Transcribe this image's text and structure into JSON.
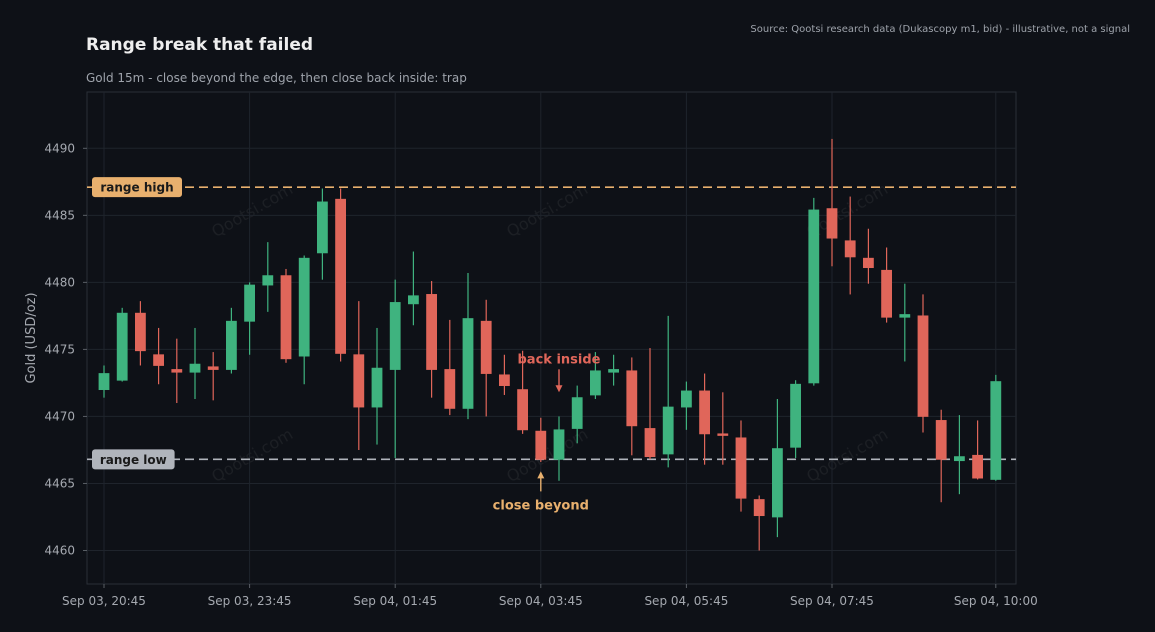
{
  "header": {
    "title": "Range break that failed",
    "subtitle": "Gold 15m - close beyond the edge, then close back inside: trap",
    "source": "Source: Qootsi research data (Dukascopy m1, bid) - illustrative, not a signal"
  },
  "watermark": "Qootsi.com",
  "colors": {
    "bg": "#0e1117",
    "up": "#3fb37f",
    "down": "#e0665a",
    "range_high": "#e8b06e",
    "range_low": "#b0b4bb",
    "grid": "#1f242c"
  },
  "chart_data": {
    "type": "candlestick",
    "xlabel": "",
    "ylabel": "Gold (USD/oz)",
    "ylim": [
      4457.5,
      4494.2
    ],
    "yticks": [
      4460,
      4465,
      4470,
      4475,
      4480,
      4485,
      4490
    ],
    "xticks": [
      {
        "index": 0,
        "label": "Sep 03, 20:45"
      },
      {
        "index": 8,
        "label": "Sep 03, 23:45"
      },
      {
        "index": 16,
        "label": "Sep 04, 01:45"
      },
      {
        "index": 24,
        "label": "Sep 04, 03:45"
      },
      {
        "index": 32,
        "label": "Sep 04, 05:45"
      },
      {
        "index": 40,
        "label": "Sep 04, 07:45"
      },
      {
        "index": 49,
        "label": "Sep 04, 10:00"
      }
    ],
    "grid": true,
    "levels": [
      {
        "name": "range high",
        "value": 4487.1
      },
      {
        "name": "range low",
        "value": 4466.8
      }
    ],
    "candles": [
      {
        "open": 4472.0,
        "high": 4473.8,
        "low": 4471.4,
        "close": 4473.2
      },
      {
        "open": 4472.7,
        "high": 4478.1,
        "low": 4472.6,
        "close": 4477.7
      },
      {
        "open": 4477.7,
        "high": 4478.6,
        "low": 4473.8,
        "close": 4474.9
      },
      {
        "open": 4474.6,
        "high": 4476.6,
        "low": 4472.4,
        "close": 4473.8
      },
      {
        "open": 4473.5,
        "high": 4475.8,
        "low": 4471.0,
        "close": 4473.3
      },
      {
        "open": 4473.3,
        "high": 4476.6,
        "low": 4471.3,
        "close": 4473.9
      },
      {
        "open": 4473.7,
        "high": 4474.8,
        "low": 4471.2,
        "close": 4473.5
      },
      {
        "open": 4473.5,
        "high": 4478.1,
        "low": 4473.2,
        "close": 4477.1
      },
      {
        "open": 4477.1,
        "high": 4480.0,
        "low": 4474.6,
        "close": 4479.8
      },
      {
        "open": 4479.8,
        "high": 4483.0,
        "low": 4477.8,
        "close": 4480.5
      },
      {
        "open": 4480.5,
        "high": 4481.0,
        "low": 4474.0,
        "close": 4474.3
      },
      {
        "open": 4474.5,
        "high": 4482.0,
        "low": 4472.4,
        "close": 4481.8
      },
      {
        "open": 4482.2,
        "high": 4487.0,
        "low": 4480.2,
        "close": 4486.0
      },
      {
        "open": 4486.2,
        "high": 4487.0,
        "low": 4474.1,
        "close": 4474.7
      },
      {
        "open": 4474.6,
        "high": 4478.6,
        "low": 4467.5,
        "close": 4470.7
      },
      {
        "open": 4470.7,
        "high": 4476.6,
        "low": 4467.9,
        "close": 4473.6
      },
      {
        "open": 4473.5,
        "high": 4480.2,
        "low": 4466.9,
        "close": 4478.5
      },
      {
        "open": 4478.4,
        "high": 4482.3,
        "low": 4476.8,
        "close": 4479.0
      },
      {
        "open": 4479.1,
        "high": 4480.1,
        "low": 4471.4,
        "close": 4473.5
      },
      {
        "open": 4473.5,
        "high": 4477.2,
        "low": 4470.1,
        "close": 4470.6
      },
      {
        "open": 4470.6,
        "high": 4480.7,
        "low": 4469.8,
        "close": 4477.3
      },
      {
        "open": 4477.1,
        "high": 4478.7,
        "low": 4470.0,
        "close": 4473.2
      },
      {
        "open": 4473.1,
        "high": 4474.6,
        "low": 4471.6,
        "close": 4472.3
      },
      {
        "open": 4472.0,
        "high": 4474.9,
        "low": 4468.7,
        "close": 4469.0
      },
      {
        "open": 4468.9,
        "high": 4469.9,
        "low": 4466.6,
        "close": 4466.8
      },
      {
        "open": 4466.8,
        "high": 4470.0,
        "low": 4465.2,
        "close": 4469.0
      },
      {
        "open": 4469.1,
        "high": 4472.3,
        "low": 4468.0,
        "close": 4471.4
      },
      {
        "open": 4471.6,
        "high": 4474.8,
        "low": 4471.3,
        "close": 4473.4
      },
      {
        "open": 4473.3,
        "high": 4474.6,
        "low": 4472.3,
        "close": 4473.5
      },
      {
        "open": 4473.4,
        "high": 4474.4,
        "low": 4467.1,
        "close": 4469.3
      },
      {
        "open": 4469.1,
        "high": 4475.1,
        "low": 4466.8,
        "close": 4467.0
      },
      {
        "open": 4467.2,
        "high": 4477.5,
        "low": 4466.2,
        "close": 4470.7
      },
      {
        "open": 4470.7,
        "high": 4472.6,
        "low": 4469.0,
        "close": 4471.9
      },
      {
        "open": 4471.9,
        "high": 4473.2,
        "low": 4466.4,
        "close": 4468.7
      },
      {
        "open": 4468.7,
        "high": 4471.8,
        "low": 4466.4,
        "close": 4468.6
      },
      {
        "open": 4468.4,
        "high": 4469.7,
        "low": 4462.9,
        "close": 4463.9
      },
      {
        "open": 4463.8,
        "high": 4464.1,
        "low": 4460.0,
        "close": 4462.6
      },
      {
        "open": 4462.5,
        "high": 4471.3,
        "low": 4461.0,
        "close": 4467.6
      },
      {
        "open": 4467.7,
        "high": 4472.7,
        "low": 4466.9,
        "close": 4472.4
      },
      {
        "open": 4472.5,
        "high": 4486.3,
        "low": 4472.3,
        "close": 4485.4
      },
      {
        "open": 4485.5,
        "high": 4490.7,
        "low": 4481.2,
        "close": 4483.3
      },
      {
        "open": 4483.1,
        "high": 4486.4,
        "low": 4479.1,
        "close": 4481.9
      },
      {
        "open": 4481.8,
        "high": 4484.0,
        "low": 4479.9,
        "close": 4481.1
      },
      {
        "open": 4480.9,
        "high": 4482.6,
        "low": 4477.0,
        "close": 4477.4
      },
      {
        "open": 4477.4,
        "high": 4479.9,
        "low": 4474.1,
        "close": 4477.6
      },
      {
        "open": 4477.5,
        "high": 4479.1,
        "low": 4468.8,
        "close": 4470.0
      },
      {
        "open": 4469.7,
        "high": 4470.5,
        "low": 4463.6,
        "close": 4466.8
      },
      {
        "open": 4466.7,
        "high": 4470.1,
        "low": 4464.2,
        "close": 4467.0
      },
      {
        "open": 4467.1,
        "high": 4469.7,
        "low": 4465.3,
        "close": 4465.4
      },
      {
        "open": 4465.3,
        "high": 4473.1,
        "low": 4465.2,
        "close": 4472.6
      }
    ],
    "annotations": [
      {
        "text": "back inside",
        "index": 25,
        "target": 4471.8,
        "position": "above"
      },
      {
        "text": "close beyond",
        "index": 24,
        "target": 4465.9,
        "position": "below"
      }
    ]
  }
}
